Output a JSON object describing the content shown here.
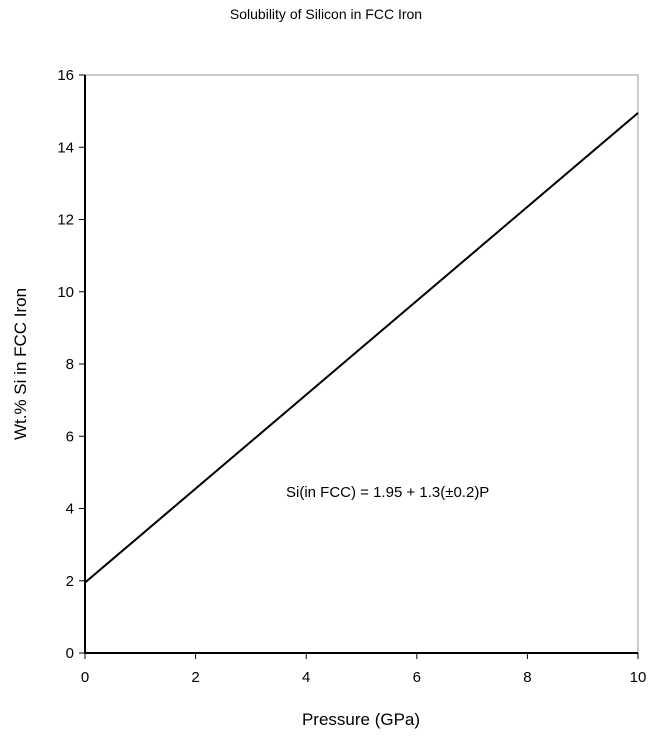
{
  "chart_data": {
    "type": "line",
    "title": "Solubility of Silicon in FCC Iron",
    "xlabel": "Pressure (GPa)",
    "ylabel": "Wt.% Si in FCC Iron",
    "xlim": [
      0,
      10
    ],
    "ylim": [
      0,
      16
    ],
    "xticks": [
      "0",
      "2",
      "4",
      "6",
      "8",
      "10"
    ],
    "yticks": [
      "0",
      "2",
      "4",
      "6",
      "8",
      "10",
      "12",
      "14",
      "16"
    ],
    "grid": false,
    "legend": "none",
    "series": [
      {
        "x": [
          0,
          10
        ],
        "y": [
          1.95,
          14.95
        ],
        "color": "#000000"
      }
    ],
    "annotation": "Si(in FCC) = 1.95 + 1.3(±0.2)P"
  }
}
